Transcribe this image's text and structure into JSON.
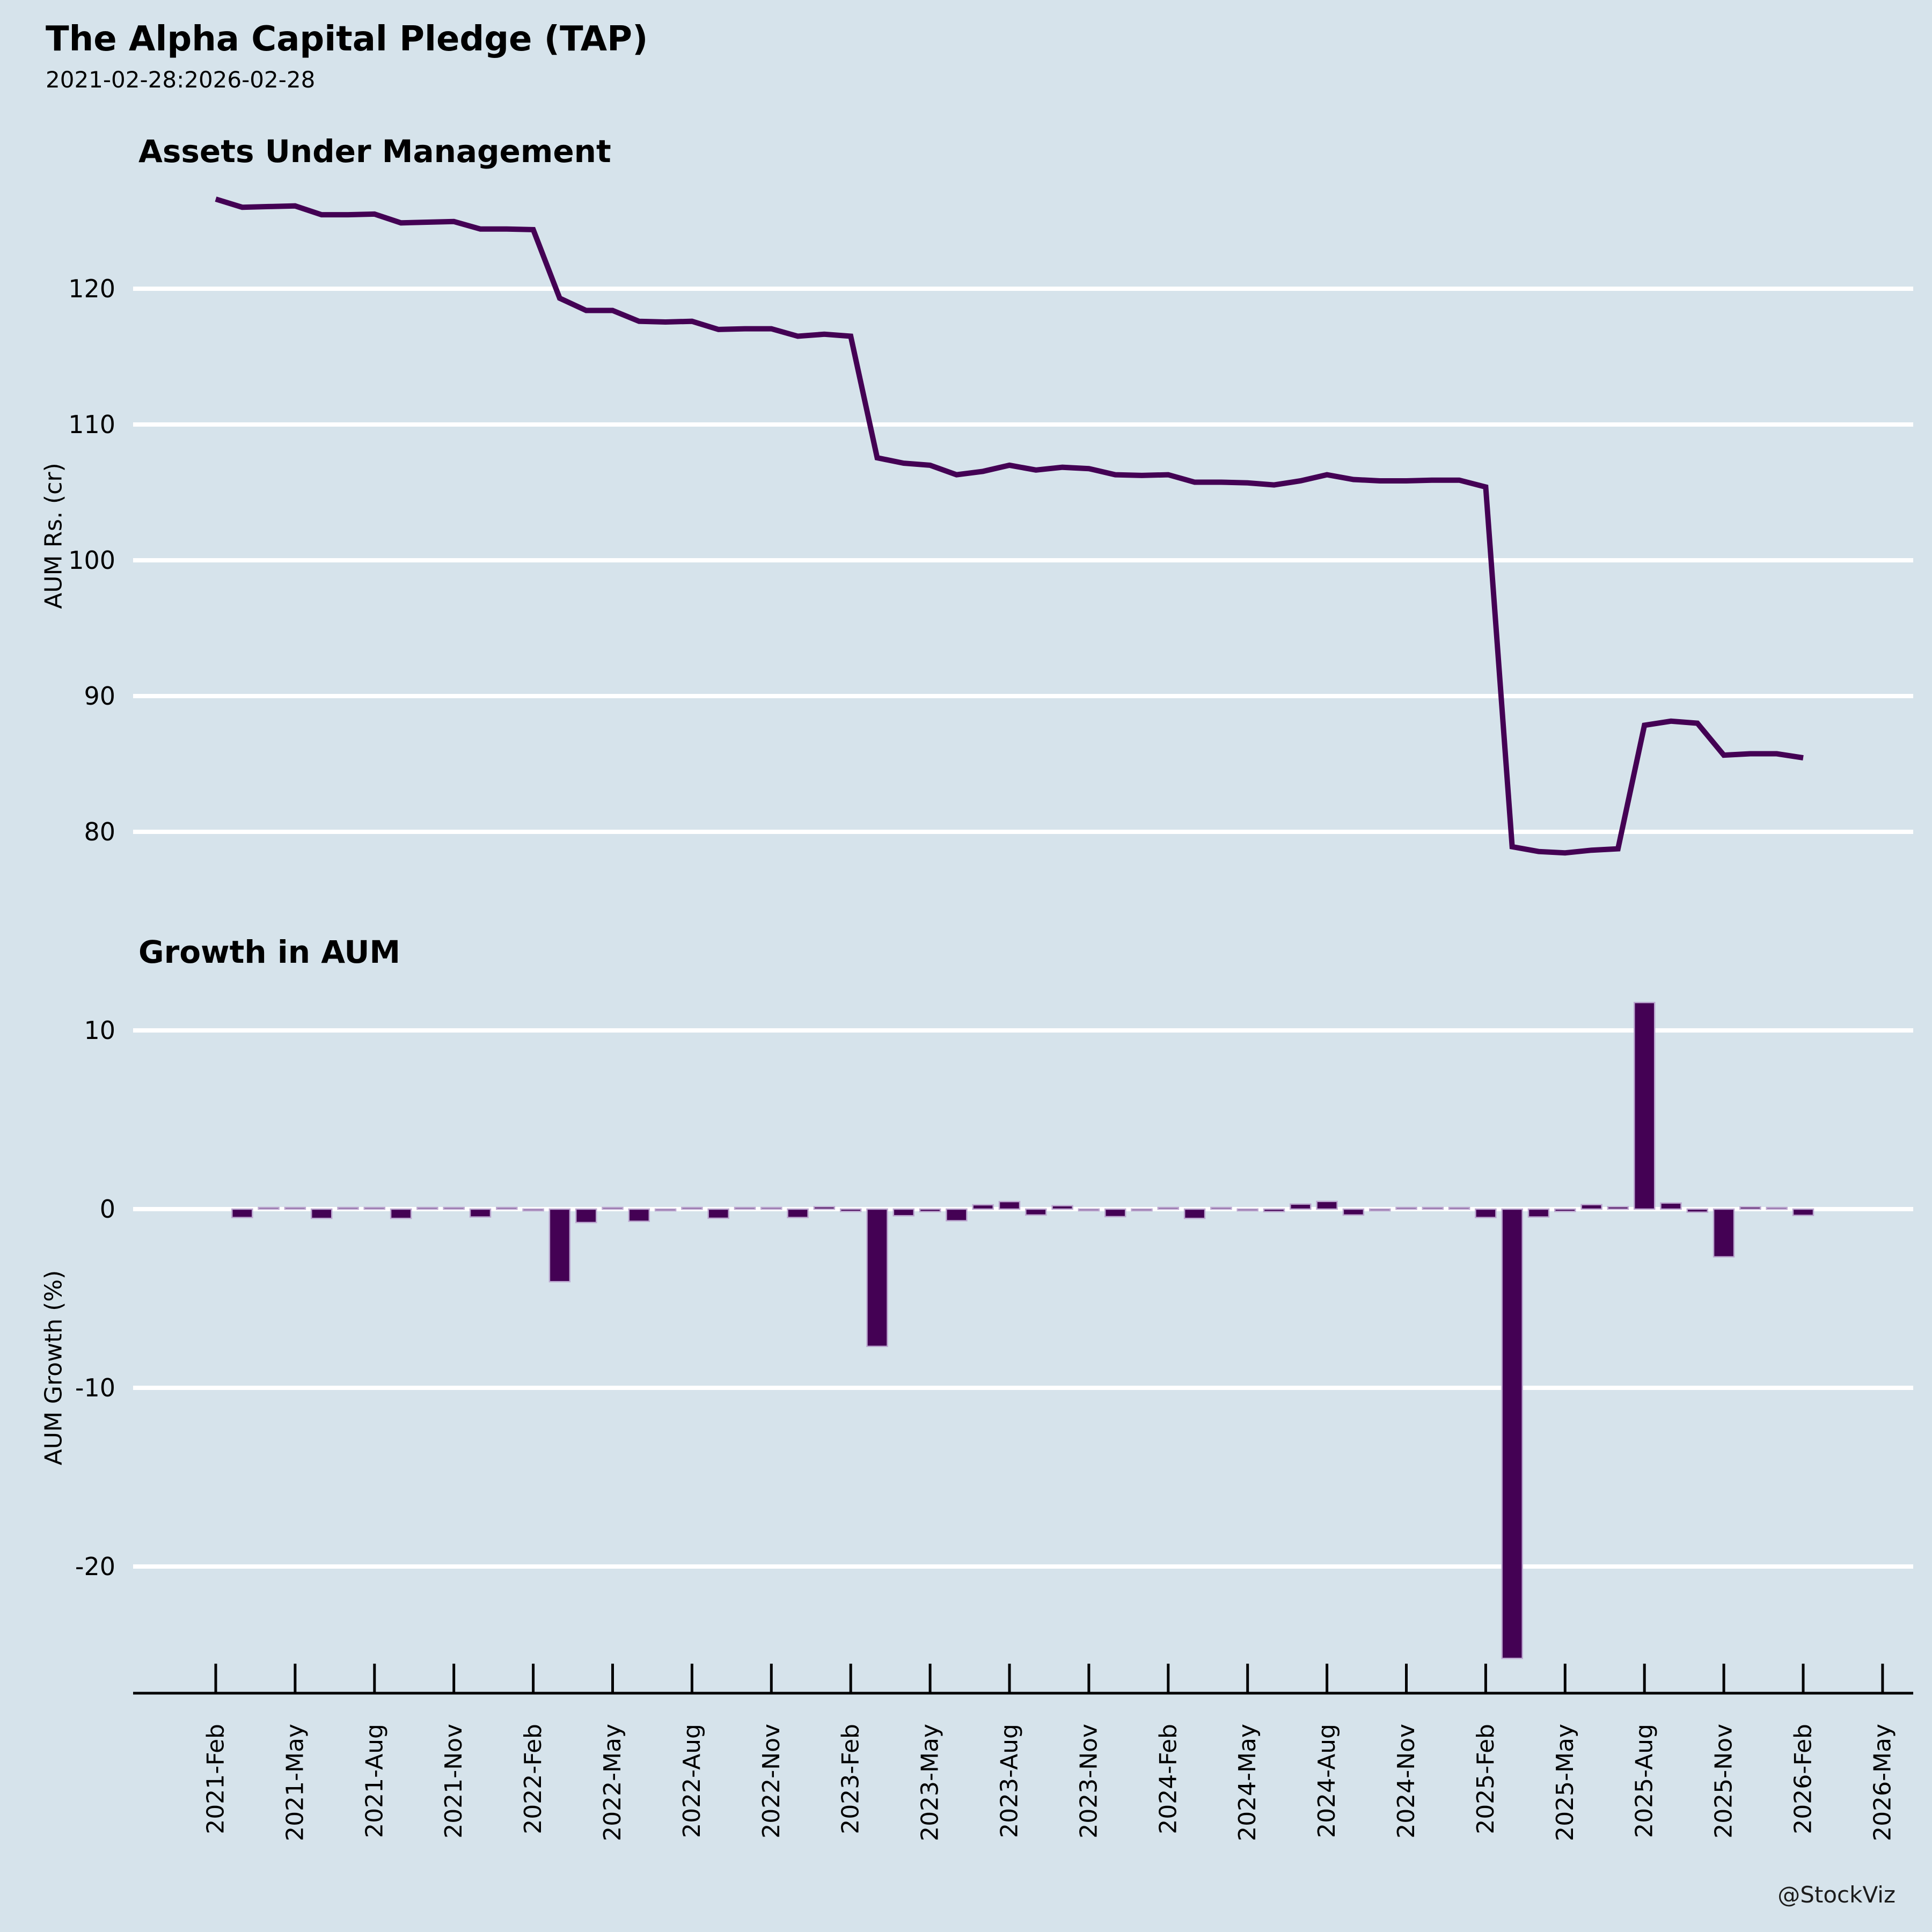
{
  "header": {
    "title": "The Alpha Capital Pledge (TAP)",
    "subtitle": "2021-02-28:2026-02-28"
  },
  "footer": {
    "watermark": "@StockViz"
  },
  "colors": {
    "background": "#d6e3eb",
    "series": "#440154",
    "bar_edge": "#bca8d0",
    "gridline": "#ffffff",
    "axis": "#000000",
    "text": "#000000"
  },
  "x_axis": {
    "tick_labels": [
      "2021-Feb",
      "2021-May",
      "2021-Aug",
      "2021-Nov",
      "2022-Feb",
      "2022-May",
      "2022-Aug",
      "2022-Nov",
      "2023-Feb",
      "2023-May",
      "2023-Aug",
      "2023-Nov",
      "2024-Feb",
      "2024-May",
      "2024-Aug",
      "2024-Nov",
      "2025-Feb",
      "2025-May",
      "2025-Aug",
      "2025-Nov",
      "2026-Feb",
      "2026-May"
    ]
  },
  "chart_data": [
    {
      "type": "line",
      "title": "Assets Under Management",
      "ylabel": "AUM Rs. (cr)",
      "yticks": [
        120,
        110,
        100,
        90,
        80
      ],
      "ylim": [
        76,
        128
      ],
      "grid": true,
      "legend": "none",
      "x": [
        "2021-Feb",
        "2021-Mar",
        "2021-Apr",
        "2021-May",
        "2021-Jun",
        "2021-Jul",
        "2021-Aug",
        "2021-Sep",
        "2021-Oct",
        "2021-Nov",
        "2021-Dec",
        "2022-Jan",
        "2022-Feb",
        "2022-Mar",
        "2022-Apr",
        "2022-May",
        "2022-Jun",
        "2022-Jul",
        "2022-Aug",
        "2022-Sep",
        "2022-Oct",
        "2022-Nov",
        "2022-Dec",
        "2023-Jan",
        "2023-Feb",
        "2023-Mar",
        "2023-Apr",
        "2023-May",
        "2023-Jun",
        "2023-Jul",
        "2023-Aug",
        "2023-Sep",
        "2023-Oct",
        "2023-Nov",
        "2023-Dec",
        "2024-Jan",
        "2024-Feb",
        "2024-Mar",
        "2024-Apr",
        "2024-May",
        "2024-Jun",
        "2024-Jul",
        "2024-Aug",
        "2024-Sep",
        "2024-Oct",
        "2024-Nov",
        "2024-Dec",
        "2025-Jan",
        "2025-Feb",
        "2025-Mar",
        "2025-Apr",
        "2025-May",
        "2025-Jun",
        "2025-Jul",
        "2025-Aug",
        "2025-Sep",
        "2025-Oct",
        "2025-Nov",
        "2025-Dec",
        "2026-Jan",
        "2026-Feb"
      ],
      "values": [
        126.6,
        126.0,
        126.05,
        126.1,
        125.45,
        125.45,
        125.5,
        124.85,
        124.9,
        124.95,
        124.4,
        124.4,
        124.35,
        119.3,
        118.4,
        118.4,
        117.6,
        117.55,
        117.6,
        117.0,
        117.05,
        117.05,
        116.5,
        116.65,
        116.5,
        107.55,
        107.15,
        107.0,
        106.3,
        106.55,
        107.0,
        106.65,
        106.85,
        106.75,
        106.3,
        106.25,
        106.3,
        105.75,
        105.75,
        105.7,
        105.55,
        105.85,
        106.3,
        105.95,
        105.85,
        105.85,
        105.9,
        105.9,
        105.4,
        78.9,
        78.55,
        78.45,
        78.65,
        78.75,
        87.85,
        88.15,
        88.0,
        85.65,
        85.75,
        85.75,
        85.45
      ]
    },
    {
      "type": "bar",
      "title": "Growth in AUM",
      "ylabel": "AUM Growth (%)",
      "yticks": [
        10,
        0,
        -10,
        -20
      ],
      "ylim": [
        -27,
        13
      ],
      "grid": true,
      "legend": "none",
      "x": [
        "2021-Mar",
        "2021-Apr",
        "2021-May",
        "2021-Jun",
        "2021-Jul",
        "2021-Aug",
        "2021-Sep",
        "2021-Oct",
        "2021-Nov",
        "2021-Dec",
        "2022-Jan",
        "2022-Feb",
        "2022-Mar",
        "2022-Apr",
        "2022-May",
        "2022-Jun",
        "2022-Jul",
        "2022-Aug",
        "2022-Sep",
        "2022-Oct",
        "2022-Nov",
        "2022-Dec",
        "2023-Jan",
        "2023-Feb",
        "2023-Mar",
        "2023-Apr",
        "2023-May",
        "2023-Jun",
        "2023-Jul",
        "2023-Aug",
        "2023-Sep",
        "2023-Oct",
        "2023-Nov",
        "2023-Dec",
        "2024-Jan",
        "2024-Feb",
        "2024-Mar",
        "2024-Apr",
        "2024-May",
        "2024-Jun",
        "2024-Jul",
        "2024-Aug",
        "2024-Sep",
        "2024-Oct",
        "2024-Nov",
        "2024-Dec",
        "2025-Jan",
        "2025-Feb",
        "2025-Mar",
        "2025-Apr",
        "2025-May",
        "2025-Jun",
        "2025-Jul",
        "2025-Aug",
        "2025-Sep",
        "2025-Oct",
        "2025-Nov",
        "2025-Dec",
        "2026-Jan",
        "2026-Feb"
      ],
      "values": [
        -0.47,
        0.04,
        0.04,
        -0.52,
        0.0,
        0.04,
        -0.52,
        0.04,
        0.04,
        -0.44,
        0.0,
        -0.04,
        -4.06,
        -0.75,
        0.0,
        -0.68,
        -0.04,
        0.04,
        -0.51,
        0.04,
        0.0,
        -0.47,
        0.13,
        -0.13,
        -7.68,
        -0.37,
        -0.14,
        -0.65,
        0.24,
        0.42,
        -0.33,
        0.19,
        -0.09,
        -0.42,
        -0.05,
        0.05,
        -0.52,
        0.0,
        -0.05,
        -0.14,
        0.28,
        0.43,
        -0.33,
        -0.09,
        0.0,
        0.05,
        0.0,
        -0.47,
        -25.14,
        -0.44,
        -0.13,
        0.25,
        0.13,
        11.56,
        0.34,
        -0.17,
        -2.67,
        0.12,
        0.0,
        -0.35
      ]
    }
  ]
}
